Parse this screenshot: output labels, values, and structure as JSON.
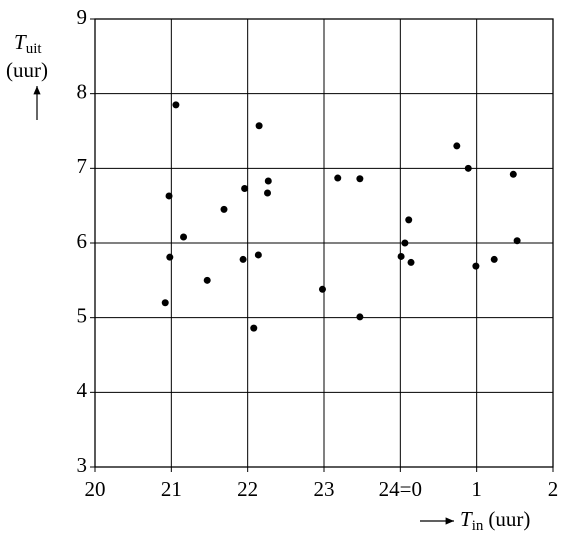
{
  "chart_data": {
    "type": "scatter",
    "xlabel": {
      "symbol": "T",
      "subscript": "in",
      "unit": "(uur)"
    },
    "ylabel": {
      "symbol": "T",
      "subscript": "uit",
      "unit": "(uur)"
    },
    "x": [
      21.06,
      22.15,
      20.97,
      22.27,
      22.26,
      21.96,
      21.69,
      21.16,
      20.98,
      21.94,
      22.14,
      21.47,
      20.92,
      22.08,
      22.98,
      23.18,
      23.47,
      23.47,
      24.74,
      24.89,
      25.48,
      24.11,
      24.01,
      24.06,
      24.14,
      24.99,
      25.23,
      25.53
    ],
    "y": [
      7.85,
      7.57,
      6.63,
      6.83,
      6.67,
      6.73,
      6.45,
      6.08,
      5.81,
      5.78,
      5.84,
      5.5,
      5.2,
      4.86,
      5.38,
      6.87,
      6.86,
      5.01,
      7.3,
      7.0,
      6.92,
      6.31,
      5.82,
      6.0,
      5.74,
      5.69,
      5.78,
      6.03
    ],
    "color": "#000000",
    "xlim": [
      20,
      26
    ],
    "ylim": [
      3,
      9
    ],
    "xticks": [
      20,
      21,
      22,
      23,
      {
        "value": 24,
        "label": "24=0"
      },
      {
        "value": 25,
        "label": "1"
      },
      {
        "value": 26,
        "label": "2"
      }
    ],
    "yticks": [
      3,
      4,
      5,
      6,
      7,
      8,
      9
    ],
    "grid": true
  }
}
